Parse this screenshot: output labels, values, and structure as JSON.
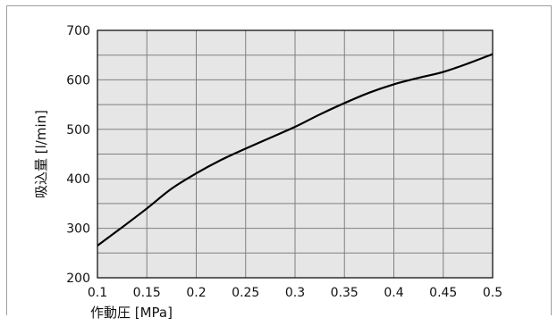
{
  "chart_data": {
    "type": "line",
    "title": "",
    "xlabel": "作動圧 [MPa]",
    "ylabel": "吸込量 [l/min]",
    "xlim": [
      0.1,
      0.5
    ],
    "ylim": [
      200,
      700
    ],
    "x_ticks": [
      "0.1",
      "0.15",
      "0.2",
      "0.25",
      "0.3",
      "0.35",
      "0.4",
      "0.45",
      "0.5"
    ],
    "y_ticks": [
      "200",
      "300",
      "400",
      "500",
      "600",
      "700"
    ],
    "grid": true,
    "minor_y_grid_step": 50,
    "colors": {
      "plot_bg": "#e6e6e6",
      "grid": "#808080",
      "line": "#000000",
      "frame": "#9e9e9e"
    },
    "series": [
      {
        "x": [
          0.1,
          0.125,
          0.15,
          0.175,
          0.2,
          0.225,
          0.25,
          0.275,
          0.3,
          0.325,
          0.35,
          0.375,
          0.4,
          0.425,
          0.45,
          0.475,
          0.5
        ],
        "values": [
          265,
          302,
          340,
          380,
          411,
          438,
          461,
          483,
          505,
          530,
          553,
          574,
          591,
          604,
          616,
          633,
          652
        ]
      }
    ]
  }
}
